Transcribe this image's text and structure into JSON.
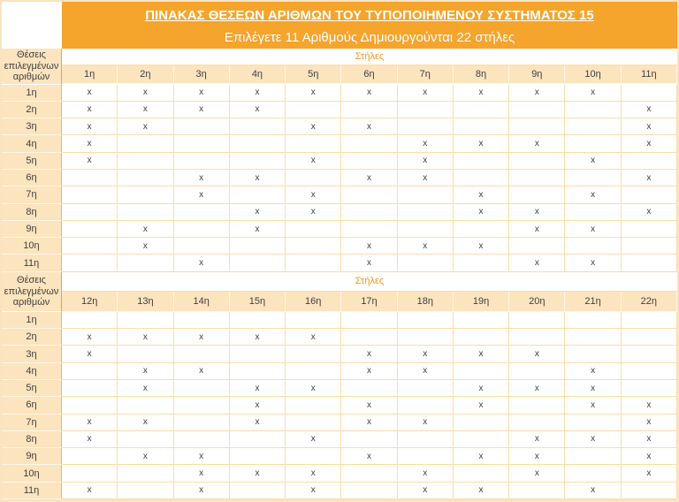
{
  "title": "ΠΙΝΑΚΑΣ ΘΕΣΕΩΝ ΑΡΙΘΜΩΝ ΤΟΥ ΤΥΠΟΠΟΙΗΜΕΝΟΥ ΣΥΣΤΗΜΑΤΟΣ 15",
  "subtitle": "Επιλέγετε 11 Αριθμούς Δημιουργούνται 22 στήλες",
  "corner_label": "Θέσεις επιλεγμένων αριθμών",
  "columns_group_label": "Στήλες",
  "mark": "x",
  "row_headers": [
    "1η",
    "2η",
    "3η",
    "4η",
    "5η",
    "6η",
    "7η",
    "8η",
    "9η",
    "10η",
    "11η"
  ],
  "colors": {
    "band_orange": "#f5a42c",
    "header_cell": "#fce4be",
    "grid_line": "#fbdca8",
    "stiles_text": "#e8981f",
    "text": "#3f3f3f"
  },
  "sections": [
    {
      "column_headers": [
        "1η",
        "2η",
        "3η",
        "4η",
        "5η",
        "6η",
        "7η",
        "8η",
        "9η",
        "10η",
        "11η"
      ],
      "rows": [
        [
          "x",
          "x",
          "x",
          "x",
          "x",
          "x",
          "x",
          "x",
          "x",
          "x",
          ""
        ],
        [
          "x",
          "x",
          "x",
          "x",
          "",
          "",
          "",
          "",
          "",
          "",
          "x"
        ],
        [
          "x",
          "x",
          "",
          "",
          "x",
          "x",
          "",
          "",
          "",
          "",
          "x"
        ],
        [
          "x",
          "",
          "",
          "",
          "",
          "",
          "x",
          "x",
          "x",
          "",
          "x"
        ],
        [
          "x",
          "",
          "",
          "",
          "x",
          "",
          "x",
          "",
          "",
          "x",
          ""
        ],
        [
          "",
          "",
          "x",
          "x",
          "",
          "x",
          "x",
          "",
          "",
          "",
          "x"
        ],
        [
          "",
          "",
          "x",
          "",
          "x",
          "",
          "",
          "x",
          "",
          "x",
          ""
        ],
        [
          "",
          "",
          "",
          "x",
          "x",
          "",
          "",
          "x",
          "x",
          "",
          "x"
        ],
        [
          "",
          "x",
          "",
          "x",
          "",
          "",
          "",
          "",
          "x",
          "x",
          ""
        ],
        [
          "",
          "x",
          "",
          "",
          "",
          "x",
          "x",
          "x",
          "",
          "",
          ""
        ],
        [
          "",
          "",
          "x",
          "",
          "",
          "x",
          "",
          "",
          "x",
          "x",
          ""
        ]
      ]
    },
    {
      "column_headers": [
        "12η",
        "13η",
        "14η",
        "15η",
        "16η",
        "17η",
        "18η",
        "19η",
        "20η",
        "21η",
        "22η"
      ],
      "rows": [
        [
          "",
          "",
          "",
          "",
          "",
          "",
          "",
          "",
          "",
          "",
          ""
        ],
        [
          "x",
          "x",
          "x",
          "x",
          "x",
          "",
          "",
          "",
          "",
          "",
          ""
        ],
        [
          "x",
          "",
          "",
          "",
          "",
          "x",
          "x",
          "x",
          "x",
          "",
          ""
        ],
        [
          "",
          "x",
          "x",
          "",
          "",
          "x",
          "x",
          "",
          "",
          "x",
          ""
        ],
        [
          "",
          "x",
          "",
          "x",
          "x",
          "",
          "",
          "x",
          "x",
          "x",
          ""
        ],
        [
          "",
          "",
          "",
          "x",
          "",
          "x",
          "",
          "x",
          "",
          "x",
          "x"
        ],
        [
          "x",
          "x",
          "",
          "x",
          "",
          "x",
          "x",
          "",
          "",
          "",
          "x"
        ],
        [
          "x",
          "",
          "",
          "",
          "x",
          "",
          "",
          "",
          "x",
          "x",
          "x"
        ],
        [
          "",
          "x",
          "x",
          "",
          "",
          "x",
          "",
          "x",
          "x",
          "",
          "x"
        ],
        [
          "",
          "",
          "x",
          "x",
          "x",
          "",
          "x",
          "",
          "x",
          "",
          "x"
        ],
        [
          "x",
          "",
          "x",
          "",
          "x",
          "",
          "x",
          "x",
          "",
          "x",
          ""
        ]
      ]
    }
  ]
}
